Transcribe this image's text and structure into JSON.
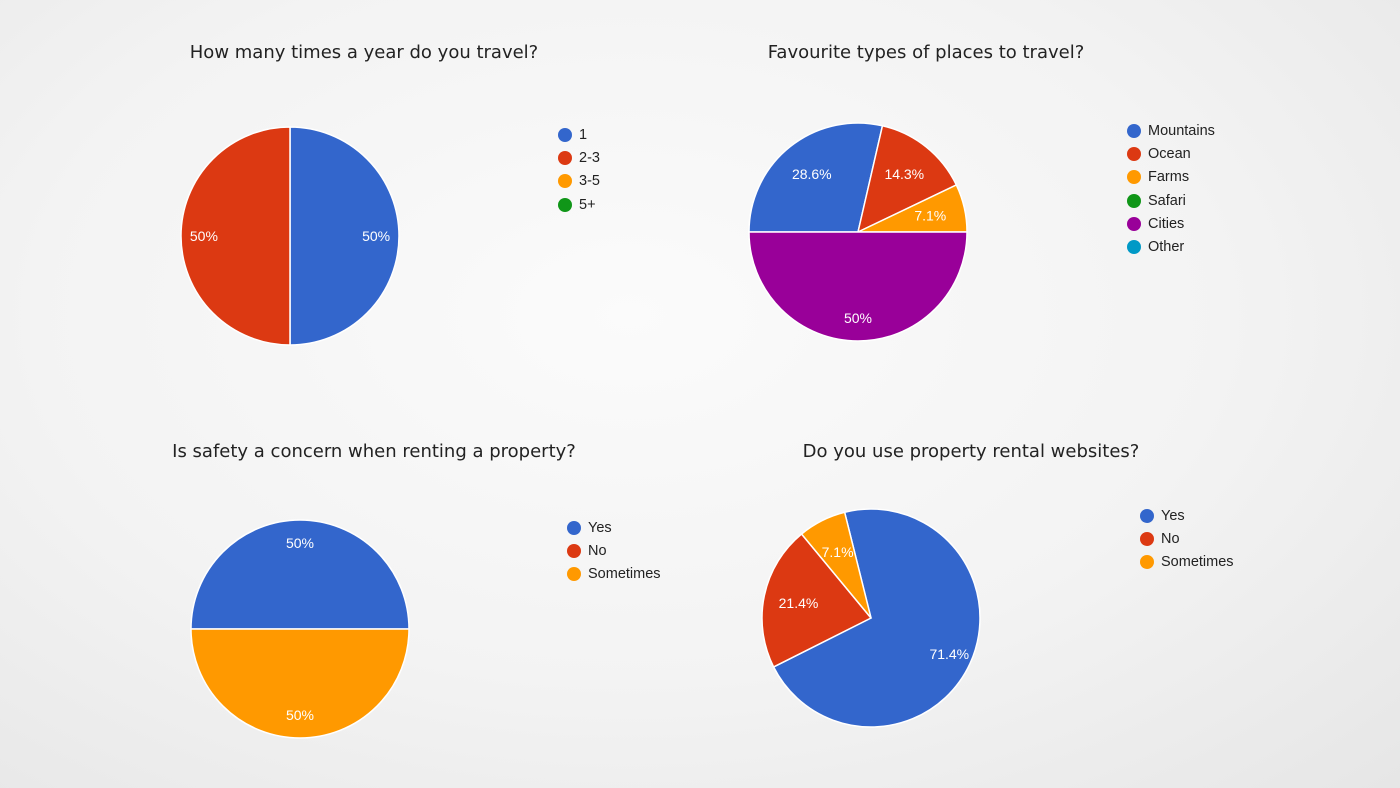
{
  "chart_data": [
    {
      "type": "pie",
      "title": "How many times a year do you travel?",
      "categories": [
        "1",
        "2-3",
        "3-5",
        "5+"
      ],
      "values": [
        50,
        50,
        0,
        0
      ],
      "slice_labels": [
        "50%",
        "50%",
        "",
        ""
      ],
      "colors": [
        "#3366cc",
        "#dc3912",
        "#ff9900",
        "#109618"
      ],
      "legend_position": "right"
    },
    {
      "type": "pie",
      "title": "Favourite types of places to travel?",
      "categories": [
        "Mountains",
        "Ocean",
        "Farms",
        "Safari",
        "Cities",
        "Other"
      ],
      "values": [
        28.6,
        14.3,
        7.1,
        0,
        50,
        0
      ],
      "slice_labels": [
        "28.6%",
        "14.3%",
        "7.1%",
        "",
        "50%",
        ""
      ],
      "colors": [
        "#3366cc",
        "#dc3912",
        "#ff9900",
        "#109618",
        "#990099",
        "#0099c6"
      ],
      "legend_position": "right"
    },
    {
      "type": "pie",
      "title": "Is safety a concern when renting a property?",
      "categories": [
        "Yes",
        "No",
        "Sometimes"
      ],
      "values": [
        50,
        0,
        50
      ],
      "slice_labels": [
        "50%",
        "",
        "50%"
      ],
      "colors": [
        "#3366cc",
        "#dc3912",
        "#ff9900"
      ],
      "legend_position": "right"
    },
    {
      "type": "pie",
      "title": "Do you use property rental websites?",
      "categories": [
        "Yes",
        "No",
        "Sometimes"
      ],
      "values": [
        71.4,
        21.4,
        7.1
      ],
      "slice_labels": [
        "71.4%",
        "21.4%",
        "7.1%"
      ],
      "colors": [
        "#3366cc",
        "#dc3912",
        "#ff9900"
      ],
      "legend_position": "right"
    }
  ]
}
